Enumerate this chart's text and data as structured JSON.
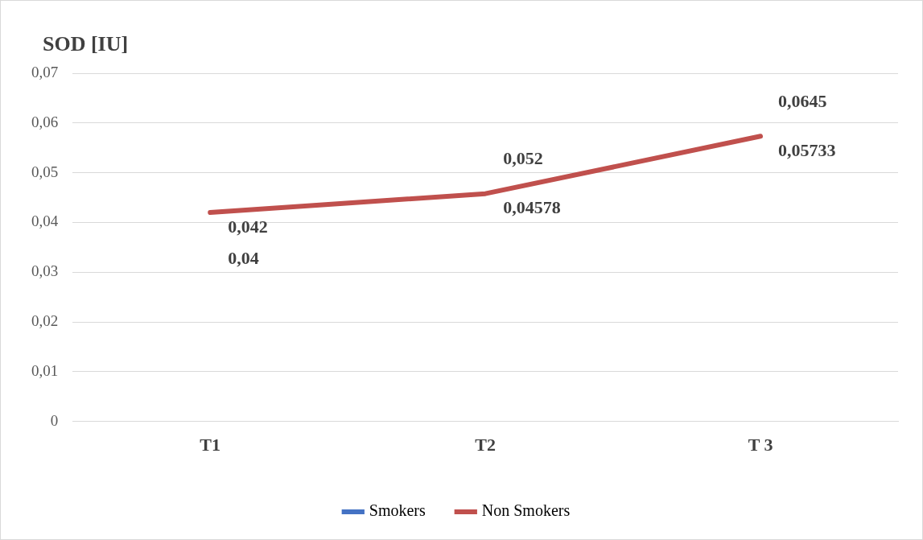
{
  "chart_data": {
    "type": "line",
    "ylabel": "SOD [IU]",
    "categories": [
      "T1",
      "T2",
      "T 3"
    ],
    "series": [
      {
        "name": "Smokers",
        "color": "#4472c4",
        "values": [
          null,
          null,
          null
        ]
      },
      {
        "name": "Non Smokers",
        "color": "#c0504d",
        "values": [
          0.042,
          0.04578,
          0.05733
        ],
        "value_labels": [
          "0,042",
          "0,04578",
          "0,05733"
        ]
      }
    ],
    "ylim": [
      0,
      0.07
    ],
    "yticks": [
      0,
      {
        "value": 0.01,
        "label": "0,01"
      },
      {
        "value": 0.02,
        "label": "0,02"
      },
      {
        "value": 0.03,
        "label": "0,03"
      },
      {
        "value": 0.04,
        "label": "0,04"
      },
      {
        "value": 0.05,
        "label": "0,05"
      },
      {
        "value": 0.06,
        "label": "0,06"
      },
      {
        "value": 0.07,
        "label": "0,07"
      }
    ],
    "annotations": [
      "0,04",
      "0,052",
      "0,0645"
    ],
    "grid": "y",
    "legend": "bottom",
    "marker": "none",
    "line_style": "solid"
  }
}
